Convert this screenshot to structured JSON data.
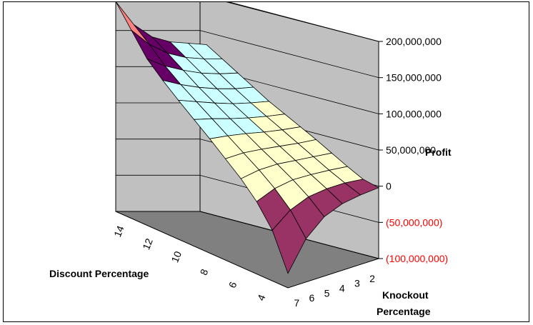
{
  "chart_data": {
    "type": "surface",
    "zlabel": "Profit",
    "xlabel": "Discount Percentage",
    "ylabel": "Knockout Percentage",
    "z_ticks": [
      "200,000,000",
      "150,000,000",
      "100,000,000",
      "50,000,000",
      "0",
      "(50,000,000)",
      "(100,000,000)"
    ],
    "zlim": [
      -100000000,
      200000000
    ],
    "discount_ticks": [
      "14",
      "12",
      "10",
      "8",
      "6",
      "4"
    ],
    "knockout_ticks": [
      "7",
      "6",
      "5",
      "4",
      "3",
      "2"
    ],
    "discount_values": [
      15,
      14,
      13,
      12,
      11,
      10,
      9,
      8,
      7,
      6,
      5,
      4
    ],
    "knockout_values": [
      7,
      6,
      5,
      4,
      3,
      2
    ],
    "band_colors": {
      "neg_deep": "#9999ff",
      "neg": "#993366",
      "pos_low": "#ffffcc",
      "pos_mid": "#ccffff",
      "pos_high": "#660066",
      "peak": "#ff8080"
    },
    "negative_tick_color": "#ff0000",
    "floor_color": "#808080",
    "wall_color": "#c0c0c0",
    "profit_grid": [
      [
        190000000,
        150000000,
        125000000,
        110000000,
        100000000,
        90000000
      ],
      [
        160000000,
        132000000,
        112000000,
        98000000,
        88000000,
        80000000
      ],
      [
        130000000,
        112000000,
        98000000,
        86000000,
        77000000,
        70000000
      ],
      [
        110000000,
        96000000,
        84000000,
        74000000,
        66000000,
        60000000
      ],
      [
        92000000,
        82000000,
        72000000,
        63000000,
        56000000,
        50000000
      ],
      [
        75000000,
        68000000,
        60000000,
        53000000,
        47000000,
        42000000
      ],
      [
        58000000,
        54000000,
        49000000,
        43000000,
        38000000,
        34000000
      ],
      [
        40000000,
        40000000,
        37000000,
        33000000,
        29000000,
        26000000
      ],
      [
        22000000,
        26000000,
        26000000,
        23000000,
        20000000,
        17000000
      ],
      [
        0,
        10000000,
        14000000,
        13000000,
        11000000,
        8000000
      ],
      [
        -30000000,
        -10000000,
        0,
        3000000,
        3000000,
        0
      ],
      [
        -80000000,
        -40000000,
        -18000000,
        -8000000,
        -4000000,
        -2000000
      ]
    ]
  }
}
